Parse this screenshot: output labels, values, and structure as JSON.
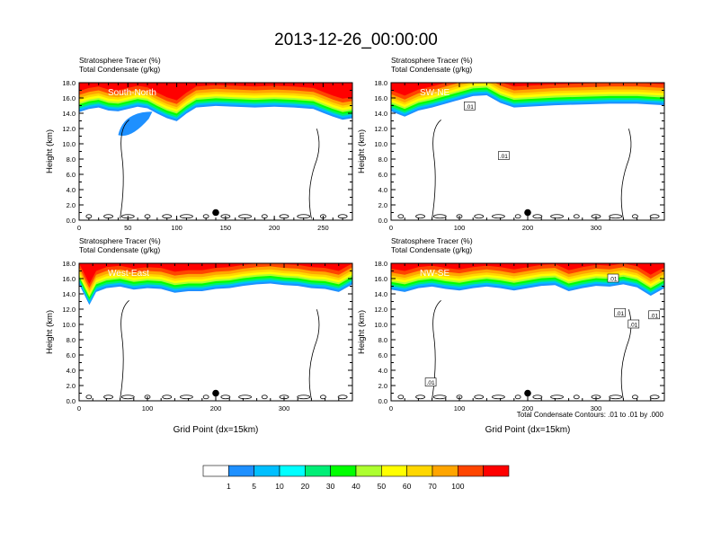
{
  "figure": {
    "title": "2013-12-26_00:00:00",
    "contour_note": "Total Condensate Contours: .01 to .01 by .000"
  },
  "colorbar": {
    "colors": [
      "#ffffff",
      "#1e90ff",
      "#00bfff",
      "#00ffff",
      "#00ee76",
      "#00ff00",
      "#adff2f",
      "#ffff00",
      "#ffd700",
      "#ffa500",
      "#ff4500",
      "#ff0000"
    ],
    "labels": [
      "1",
      "5",
      "10",
      "20",
      "30",
      "40",
      "50",
      "60",
      "70",
      "100"
    ]
  },
  "chart_data": [
    {
      "type": "heatmap",
      "id": "south-north",
      "label": "South-North",
      "subtitle_lines": [
        "Stratosphere Tracer   (%)",
        "Total Condensate   (g/kg)"
      ],
      "xlabel": "",
      "ylabel": "Height (km)",
      "xlim": [
        0,
        280
      ],
      "ylim": [
        0,
        18
      ],
      "xticks": [
        0,
        50,
        100,
        150,
        200,
        250
      ],
      "yticks": [
        "0.0",
        "2.0",
        "4.0",
        "6.0",
        "8.0",
        "10.0",
        "12.0",
        "14.0",
        "16.0",
        "18.0"
      ],
      "tracer_base_km": [
        [
          0,
          14.4
        ],
        [
          10,
          14.8
        ],
        [
          20,
          15.0
        ],
        [
          30,
          14.6
        ],
        [
          40,
          14.5
        ],
        [
          50,
          14.8
        ],
        [
          60,
          15.1
        ],
        [
          70,
          14.9
        ],
        [
          80,
          14.2
        ],
        [
          90,
          13.6
        ],
        [
          100,
          13.2
        ],
        [
          110,
          14.2
        ],
        [
          120,
          15.0
        ],
        [
          140,
          15.2
        ],
        [
          160,
          15.1
        ],
        [
          180,
          15.0
        ],
        [
          200,
          15.1
        ],
        [
          220,
          15.0
        ],
        [
          240,
          14.8
        ],
        [
          250,
          14.3
        ],
        [
          260,
          13.8
        ],
        [
          270,
          13.4
        ],
        [
          280,
          13.6
        ]
      ],
      "blob": {
        "x": [
          40,
          75
        ],
        "y": [
          10.8,
          14.2
        ]
      },
      "contour_labels": [],
      "marker": {
        "x": 140,
        "y": 1.0
      }
    },
    {
      "type": "heatmap",
      "id": "sw-ne",
      "label": "SW-NE",
      "subtitle_lines": [
        "Stratosphere Tracer   (%)",
        "Total Condensate   (g/kg)"
      ],
      "xlabel": "",
      "ylabel": "Height (km)",
      "xlim": [
        0,
        400
      ],
      "ylim": [
        0,
        18
      ],
      "xticks": [
        0,
        100,
        200,
        300
      ],
      "yticks": [
        "0.0",
        "2.0",
        "4.0",
        "6.0",
        "8.0",
        "10.0",
        "12.0",
        "14.0",
        "16.0",
        "18.0"
      ],
      "tracer_base_km": [
        [
          0,
          14.5
        ],
        [
          20,
          13.8
        ],
        [
          40,
          14.6
        ],
        [
          60,
          15.0
        ],
        [
          80,
          15.5
        ],
        [
          100,
          16.0
        ],
        [
          120,
          16.5
        ],
        [
          140,
          16.6
        ],
        [
          160,
          15.6
        ],
        [
          180,
          15.0
        ],
        [
          200,
          15.1
        ],
        [
          240,
          15.3
        ],
        [
          280,
          15.4
        ],
        [
          320,
          15.5
        ],
        [
          360,
          15.5
        ],
        [
          400,
          15.3
        ]
      ],
      "blob": null,
      "contour_labels": [
        {
          "x": 115,
          "y": 14.9,
          "text": ".01"
        },
        {
          "x": 165,
          "y": 8.4,
          "text": ".01"
        }
      ],
      "marker": {
        "x": 200,
        "y": 1.0
      }
    },
    {
      "type": "heatmap",
      "id": "west-east",
      "label": "West-East",
      "subtitle_lines": [
        "Stratosphere Tracer   (%)",
        "Total Condensate   (g/kg)"
      ],
      "xlabel": "Grid Point (dx=15km)",
      "ylabel": "Height (km)",
      "xlim": [
        0,
        400
      ],
      "ylim": [
        0,
        18
      ],
      "xticks": [
        0,
        100,
        200,
        300
      ],
      "yticks": [
        "0.0",
        "2.0",
        "4.0",
        "6.0",
        "8.0",
        "10.0",
        "12.0",
        "14.0",
        "16.0",
        "18.0"
      ],
      "tracer_base_km": [
        [
          0,
          15.5
        ],
        [
          15,
          12.8
        ],
        [
          25,
          14.5
        ],
        [
          40,
          15.0
        ],
        [
          60,
          15.2
        ],
        [
          80,
          14.8
        ],
        [
          100,
          15.0
        ],
        [
          120,
          14.9
        ],
        [
          140,
          14.4
        ],
        [
          160,
          14.6
        ],
        [
          180,
          14.6
        ],
        [
          200,
          14.9
        ],
        [
          220,
          15.0
        ],
        [
          240,
          15.3
        ],
        [
          260,
          15.5
        ],
        [
          280,
          15.6
        ],
        [
          300,
          15.4
        ],
        [
          320,
          15.3
        ],
        [
          340,
          15.0
        ],
        [
          360,
          14.9
        ],
        [
          380,
          14.5
        ],
        [
          400,
          15.5
        ]
      ],
      "blob": null,
      "contour_labels": [],
      "marker": {
        "x": 200,
        "y": 1.0
      }
    },
    {
      "type": "heatmap",
      "id": "nw-se",
      "label": "NW-SE",
      "subtitle_lines": [
        "Stratosphere Tracer   (%)",
        "Total Condensate   (g/kg)"
      ],
      "xlabel": "Grid Point (dx=15km)",
      "ylabel": "Height (km)",
      "xlim": [
        0,
        400
      ],
      "ylim": [
        0,
        18
      ],
      "xticks": [
        0,
        100,
        200,
        300
      ],
      "yticks": [
        "0.0",
        "2.0",
        "4.0",
        "6.0",
        "8.0",
        "10.0",
        "12.0",
        "14.0",
        "16.0",
        "18.0"
      ],
      "tracer_base_km": [
        [
          0,
          14.8
        ],
        [
          20,
          14.5
        ],
        [
          40,
          15.0
        ],
        [
          60,
          15.2
        ],
        [
          80,
          14.9
        ],
        [
          100,
          14.7
        ],
        [
          120,
          15.0
        ],
        [
          140,
          15.2
        ],
        [
          160,
          15.0
        ],
        [
          180,
          14.7
        ],
        [
          200,
          15.0
        ],
        [
          220,
          15.3
        ],
        [
          240,
          15.4
        ],
        [
          260,
          14.6
        ],
        [
          280,
          15.0
        ],
        [
          300,
          15.3
        ],
        [
          320,
          15.2
        ],
        [
          340,
          15.5
        ],
        [
          360,
          15.1
        ],
        [
          380,
          14.0
        ],
        [
          400,
          15.0
        ]
      ],
      "blob": null,
      "contour_labels": [
        {
          "x": 58,
          "y": 2.4,
          "text": ".01"
        },
        {
          "x": 325,
          "y": 16.0,
          "text": ".01"
        },
        {
          "x": 335,
          "y": 11.5,
          "text": ".01"
        },
        {
          "x": 355,
          "y": 10.0,
          "text": ".01"
        },
        {
          "x": 385,
          "y": 11.2,
          "text": ".01"
        }
      ],
      "marker": {
        "x": 200,
        "y": 1.0
      }
    }
  ]
}
